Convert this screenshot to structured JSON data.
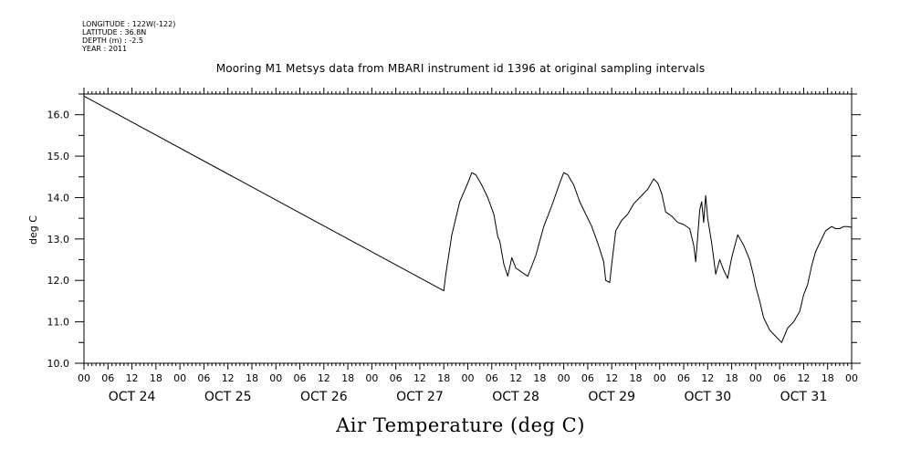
{
  "meta": {
    "longitude": "LONGITUDE : 122W(-122)",
    "latitude": "LATITUDE : 36.8N",
    "depth": "DEPTH (m) : -2.5",
    "year": "YEAR : 2011"
  },
  "chart_data": {
    "type": "line",
    "title": "Mooring M1 Metsys data from MBARI instrument id 1396 at original sampling intervals",
    "xlabel": "Air Temperature (deg C)",
    "ylabel": "deg C",
    "ylim": [
      10.0,
      16.5
    ],
    "yticks": [
      "10.0",
      "11.0",
      "12.0",
      "13.0",
      "14.0",
      "15.0",
      "16.0"
    ],
    "xlim_hours": [
      0,
      192
    ],
    "hour_tick_labels": [
      "00",
      "06",
      "12",
      "18"
    ],
    "day_labels": [
      "OCT 24",
      "OCT 25",
      "OCT 26",
      "OCT 27",
      "OCT 28",
      "OCT 29",
      "OCT 30",
      "OCT 31"
    ],
    "final_tick_label": "00",
    "series": [
      {
        "x_hours": [
          0,
          90,
          90.5,
          92,
          94,
          96,
          97,
          98,
          99.5,
          101,
          102.5,
          103.5,
          104,
          105,
          106,
          107,
          108,
          109.5,
          111,
          113,
          115,
          117,
          119,
          120,
          121,
          122.5,
          124,
          125.5,
          127,
          128.5,
          130,
          130.5,
          131.5,
          132,
          133,
          134.5,
          136,
          137.5,
          139,
          141,
          142.5,
          143.5,
          144.5,
          145.5,
          147,
          148.5,
          150,
          151.5,
          152.5,
          153,
          154,
          154.5,
          155,
          155.5,
          156,
          157,
          158,
          159,
          160,
          161,
          162,
          163.5,
          165,
          166.5,
          167.5,
          168,
          169,
          170,
          171.5,
          173,
          174.5,
          176,
          177.5,
          179,
          180,
          181,
          182,
          183,
          184,
          185.5,
          187,
          188,
          189,
          190,
          191,
          192
        ],
        "y": [
          16.45,
          11.75,
          12.15,
          13.1,
          13.9,
          14.35,
          14.6,
          14.55,
          14.3,
          14.0,
          13.6,
          13.05,
          12.95,
          12.4,
          12.1,
          12.55,
          12.3,
          12.2,
          12.1,
          12.6,
          13.3,
          13.8,
          14.35,
          14.6,
          14.55,
          14.3,
          13.9,
          13.6,
          13.3,
          12.9,
          12.45,
          12.0,
          11.95,
          12.4,
          13.2,
          13.45,
          13.6,
          13.85,
          14.0,
          14.2,
          14.45,
          14.35,
          14.1,
          13.65,
          13.55,
          13.4,
          13.35,
          13.25,
          12.85,
          12.45,
          13.7,
          13.9,
          13.4,
          14.05,
          13.5,
          12.9,
          12.15,
          12.5,
          12.25,
          12.05,
          12.55,
          13.1,
          12.85,
          12.5,
          12.1,
          11.85,
          11.5,
          11.1,
          10.8,
          10.65,
          10.5,
          10.85,
          11.0,
          11.25,
          11.65,
          11.9,
          12.35,
          12.7,
          12.9,
          13.2,
          13.3,
          13.25,
          13.25,
          13.3,
          13.3,
          13.28
        ]
      }
    ],
    "grid": false
  }
}
